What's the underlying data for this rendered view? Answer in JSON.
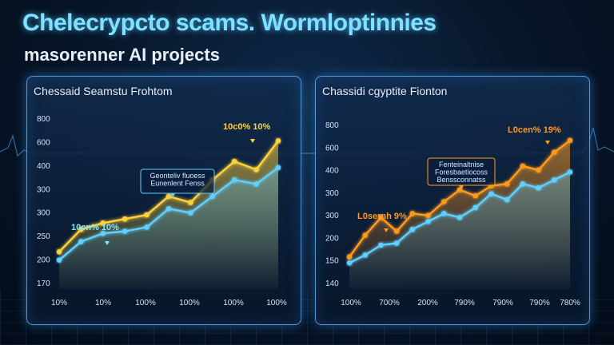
{
  "header": {
    "title": "Chelecrypcto scams. Wormloptinnies",
    "subtitle": "masorenner AI projects"
  },
  "colors": {
    "blue_line": "#5fd0ff",
    "yellow_line": "#ffd23a",
    "orange_line": "#ff9a1f",
    "panel_border": "#6ebeff"
  },
  "chart_data": [
    {
      "type": "line",
      "title": "Chessaid Seamstu Frohtom",
      "y_tick_labels": [
        "170",
        "200",
        "250",
        "300",
        "300",
        "400",
        "600",
        "800"
      ],
      "x_tick_labels": [
        "10%",
        "10%",
        "100%",
        "100%",
        "100%",
        "100%"
      ],
      "ylim": [
        0,
        800
      ],
      "grid": false,
      "series": [
        {
          "color": "#ffd23a",
          "values": [
            150,
            260,
            290,
            310,
            330,
            420,
            390,
            500,
            590,
            550,
            690
          ]
        },
        {
          "color": "#5fd0ff",
          "values": [
            110,
            200,
            240,
            250,
            270,
            360,
            340,
            420,
            500,
            480,
            560
          ]
        }
      ],
      "annotations": [
        {
          "text": "10c0% 10%",
          "color": "#ffd23a"
        },
        {
          "text": "10cn% 10%",
          "color": "#7fe6ff"
        }
      ],
      "callout": [
        "Geonteliv fluoess",
        "Eunenlent Fenss"
      ]
    },
    {
      "type": "line",
      "title": "Chassidi cgyptite Fionton",
      "y_tick_labels": [
        "140",
        "150",
        "200",
        "300",
        "300",
        "400",
        "600",
        "800"
      ],
      "x_tick_labels": [
        "100%",
        "700%",
        "200%",
        "790%",
        "790%",
        "790%",
        "780%"
      ],
      "ylim": [
        0,
        800
      ],
      "grid": false,
      "series": [
        {
          "color": "#ff9a1f",
          "values": [
            130,
            240,
            330,
            260,
            350,
            340,
            410,
            470,
            440,
            490,
            500,
            590,
            570,
            660,
            720
          ]
        },
        {
          "color": "#5fd0ff",
          "values": [
            100,
            140,
            190,
            200,
            270,
            310,
            350,
            330,
            380,
            450,
            420,
            500,
            480,
            520,
            560
          ]
        }
      ],
      "annotations": [
        {
          "text": "L0cen% 19%",
          "color": "#ff9a1f"
        },
        {
          "text": "L0sernh 9%",
          "color": "#ff9a1f"
        }
      ],
      "callout": [
        "Fenteinaltnise",
        "Foresbaetiocoss",
        "Benssconnatss"
      ]
    }
  ]
}
